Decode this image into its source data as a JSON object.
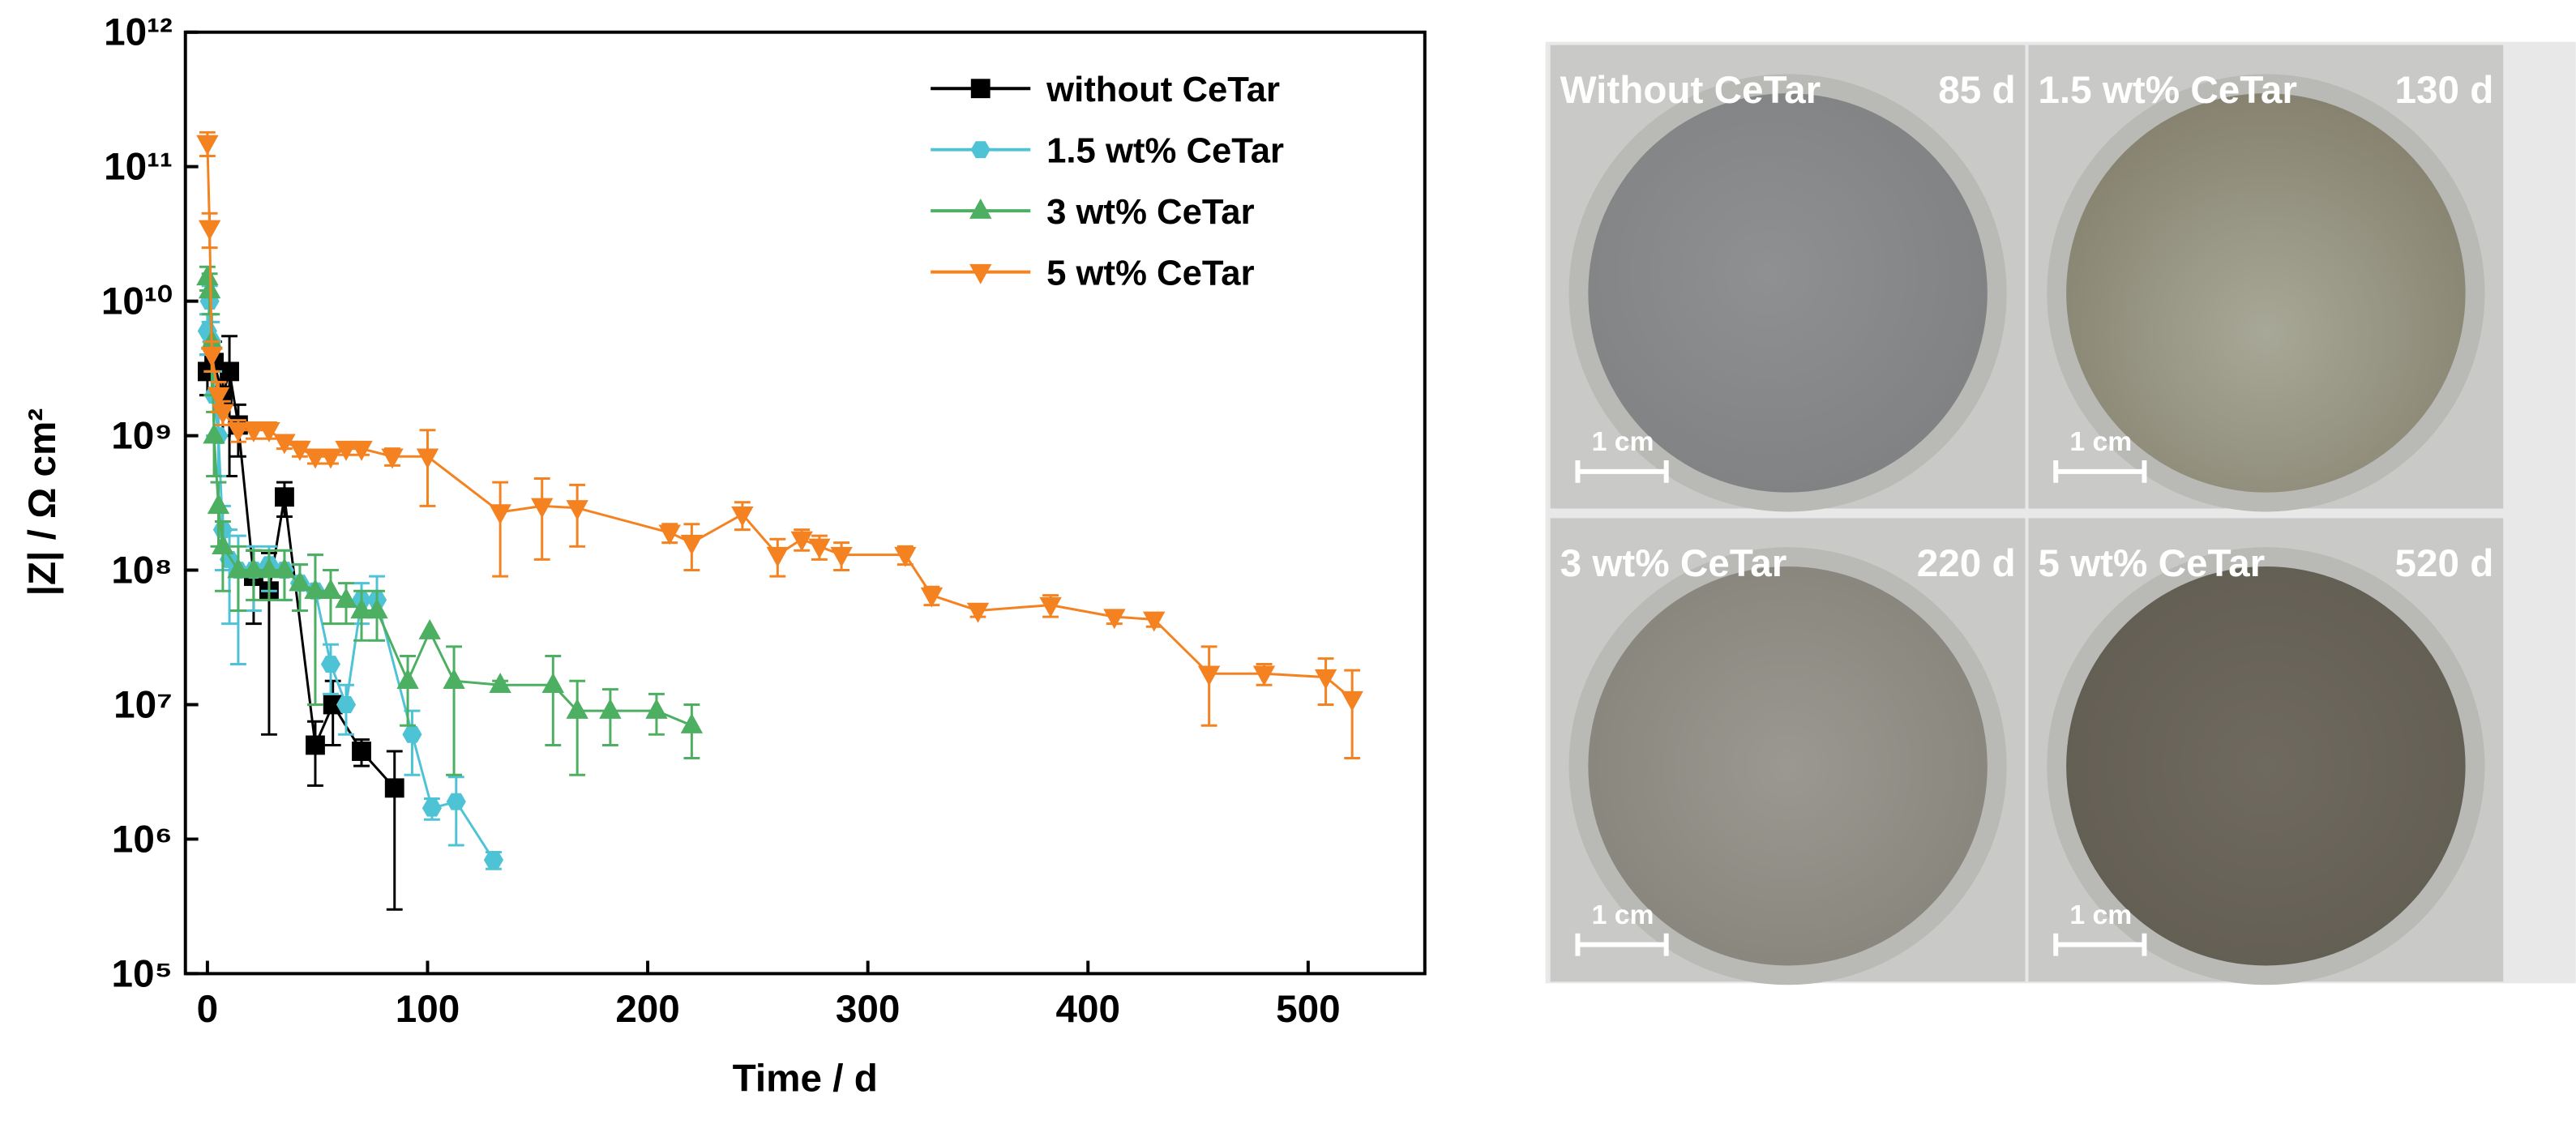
{
  "chart_data": {
    "type": "line",
    "log_y": true,
    "grid": false,
    "legend": "upper right",
    "xlabel": "Time / d",
    "ylabel": "|Z| / Ω cm²",
    "xlim": [
      -10,
      553
    ],
    "xticks": [
      0,
      100,
      200,
      300,
      400,
      500
    ],
    "ylim": [
      100000,
      1000000000000
    ],
    "yticks": [
      {
        "value": 100000,
        "label": "10⁵"
      },
      {
        "value": 1000000,
        "label": "10⁶"
      },
      {
        "value": 10000000,
        "label": "10⁷"
      },
      {
        "value": 100000000,
        "label": "10⁸"
      },
      {
        "value": 1000000000,
        "label": "10⁹"
      },
      {
        "value": 10000000000,
        "label": "10¹⁰"
      },
      {
        "value": 100000000000,
        "label": "10¹¹"
      },
      {
        "value": 1000000000000,
        "label": "10¹²"
      }
    ],
    "series": [
      {
        "name": "without CeTar",
        "color": "#000000",
        "marker": "square",
        "x": [
          0,
          3,
          7,
          10,
          14,
          21,
          28,
          35,
          49,
          57,
          70,
          85
        ],
        "values": [
          3000000000,
          3500000000,
          2000000000,
          3000000000,
          1200000000,
          90000000,
          70000000,
          350000000,
          5000000,
          10000000,
          4500000,
          2400000
        ],
        "errors": [
          1000000000,
          1500000000,
          1000000000,
          2500000000,
          500000000,
          50000000,
          64000000,
          100000000,
          2500000,
          5000000,
          1000000,
          2100000
        ]
      },
      {
        "name": "1.5 wt% CeTar",
        "color": "#4fc3d6",
        "marker": "hexagon",
        "x": [
          0,
          1,
          2,
          3,
          5,
          7,
          10,
          14,
          21,
          28,
          35,
          42,
          49,
          56,
          63,
          70,
          77,
          93,
          102,
          113,
          130
        ],
        "values": [
          6000000000,
          10000000000,
          5000000000,
          2000000000,
          1000000000,
          200000000,
          120000000,
          100000000,
          100000000,
          110000000,
          100000000,
          80000000,
          70000000,
          20000000,
          10000000,
          60000000,
          60000000,
          6000000,
          1700000,
          1900000,
          700000
        ],
        "errors": [
          2000000000,
          3000000000,
          2000000000,
          1000000000,
          500000000,
          100000000,
          80000000,
          80000000,
          50000000,
          40000000,
          40000000,
          30000000,
          60000000,
          8000000,
          4000000,
          20000000,
          30000000,
          3000000,
          300000,
          1000000,
          100000
        ]
      },
      {
        "name": "3 wt% CeTar",
        "color": "#4caf61",
        "marker": "triangle-up",
        "x": [
          0,
          1,
          2,
          3,
          5,
          7,
          14,
          21,
          28,
          35,
          42,
          49,
          56,
          63,
          70,
          77,
          91,
          101,
          112,
          133,
          157,
          168,
          183,
          204,
          220
        ],
        "values": [
          15000000000,
          12000000000,
          5000000000,
          1000000000,
          300000000,
          150000000,
          100000000,
          100000000,
          100000000,
          100000000,
          80000000,
          70000000,
          70000000,
          60000000,
          50000000,
          50000000,
          15000000,
          35000000,
          15000000,
          14000000,
          14000000,
          9000000,
          9000000,
          9000000,
          7000000
        ],
        "errors": [
          3000000000,
          4000000000,
          3000000000,
          500000000,
          150000000,
          80000000,
          50000000,
          40000000,
          40000000,
          40000000,
          30000000,
          60000000,
          30000000,
          20000000,
          20000000,
          20000000,
          8000000,
          35000000,
          12000000,
          1000000,
          9000000,
          6000000,
          4000000,
          3000000,
          3000000
        ]
      },
      {
        "name": "5 wt% CeTar",
        "color": "#f58220",
        "marker": "triangle-down",
        "x": [
          0,
          1,
          2,
          5,
          7,
          14,
          21,
          28,
          35,
          42,
          49,
          56,
          63,
          70,
          84,
          100,
          133,
          152,
          168,
          210,
          220,
          243,
          259,
          270,
          278,
          288,
          317,
          329,
          350,
          383,
          412,
          430,
          455,
          480,
          508,
          520
        ],
        "values": [
          150000000000,
          35000000000,
          4000000000,
          2000000000,
          1500000000,
          1100000000,
          1100000000,
          1100000000,
          900000000,
          800000000,
          700000000,
          700000000,
          800000000,
          800000000,
          700000000,
          700000000,
          270000000,
          300000000,
          290000000,
          190000000,
          160000000,
          260000000,
          130000000,
          170000000,
          150000000,
          130000000,
          130000000,
          65000000,
          50000000,
          55000000,
          45000000,
          43000000,
          17000000,
          17000000,
          16000000,
          11000000
        ],
        "errors": [
          30000000000,
          10000000000,
          1000000000,
          500000000,
          300000000,
          200000000,
          150000000,
          150000000,
          100000000,
          100000000,
          80000000,
          80000000,
          80000000,
          80000000,
          100000000,
          400000000,
          180000000,
          180000000,
          140000000,
          30000000,
          60000000,
          60000000,
          40000000,
          30000000,
          30000000,
          30000000,
          20000000,
          10000000,
          5000000,
          10000000,
          5000000,
          5000000,
          10000000,
          3000000,
          6000000,
          7000000
        ]
      }
    ]
  },
  "photos": [
    {
      "label": "Without CeTar",
      "days": "85 d",
      "scale": "1 cm"
    },
    {
      "label": "1.5 wt% CeTar",
      "days": "130 d",
      "scale": "1 cm"
    },
    {
      "label": "3 wt% CeTar",
      "days": "220 d",
      "scale": "1 cm"
    },
    {
      "label": "5 wt% CeTar",
      "days": "520 d",
      "scale": "1 cm"
    }
  ]
}
